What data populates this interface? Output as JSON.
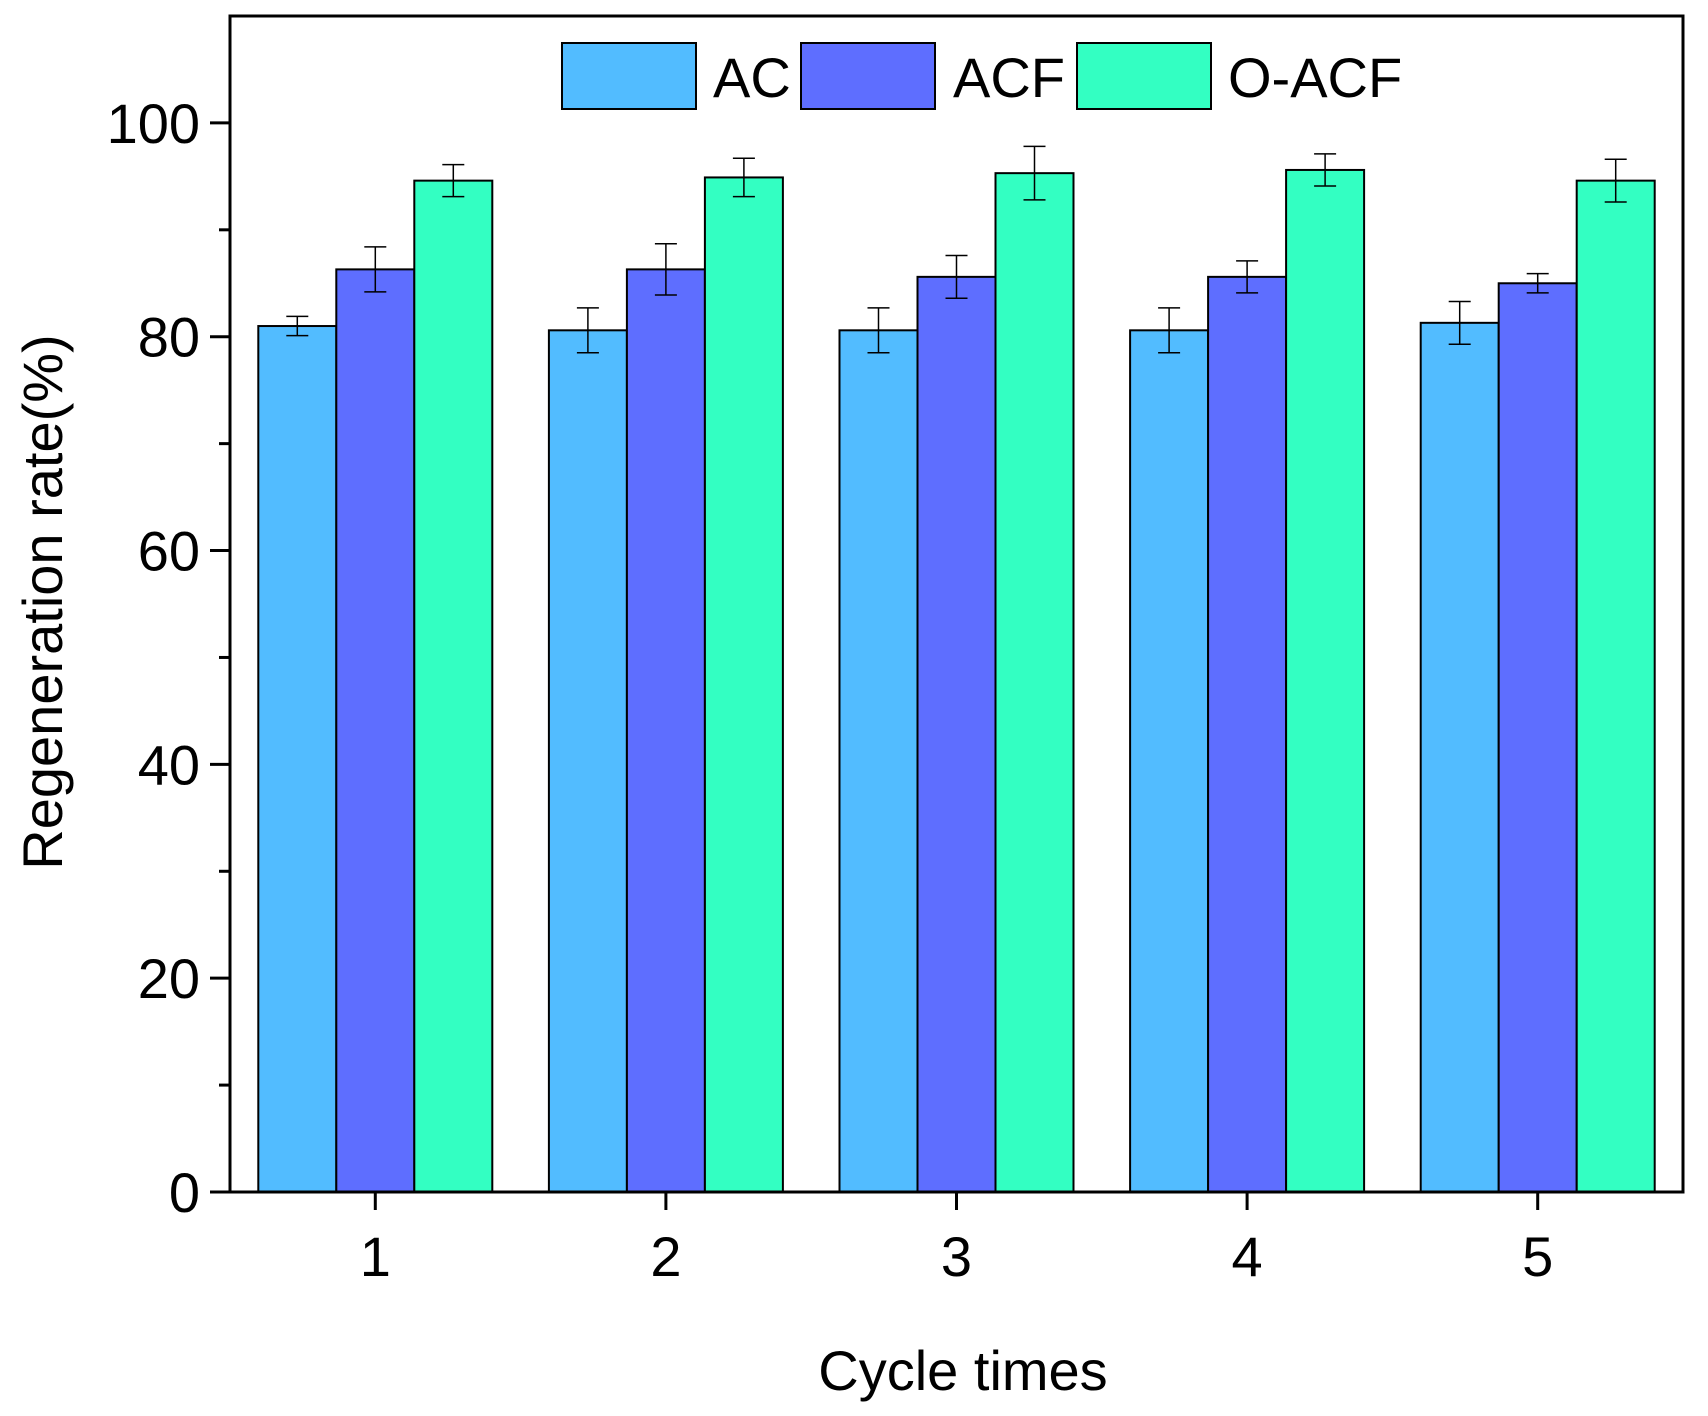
{
  "chart_data": {
    "type": "bar",
    "title": "",
    "xlabel": "Cycle times",
    "ylabel": "Regeneration rate(%)",
    "categories": [
      "1",
      "2",
      "3",
      "4",
      "5"
    ],
    "ylim": [
      0,
      110
    ],
    "yticks": [
      0,
      20,
      40,
      60,
      80,
      100
    ],
    "yticks_minor": [
      10,
      30,
      50,
      70,
      90
    ],
    "ytick_labels": [
      "0",
      "20",
      "40",
      "60",
      "80",
      "100"
    ],
    "legend_position": "top-center",
    "grid": false,
    "series": [
      {
        "name": "AC",
        "color": "#52BCFF",
        "values": [
          81.0,
          80.6,
          80.6,
          80.6,
          81.3
        ],
        "errors": [
          0.9,
          2.1,
          2.1,
          2.1,
          2.0
        ]
      },
      {
        "name": "ACF",
        "color": "#5E6EFF",
        "values": [
          86.3,
          86.3,
          85.6,
          85.6,
          85.0
        ],
        "errors": [
          2.1,
          2.4,
          2.0,
          1.5,
          0.9
        ]
      },
      {
        "name": "O-ACF",
        "color": "#33FFC2",
        "values": [
          94.6,
          94.9,
          95.3,
          95.6,
          94.6
        ],
        "errors": [
          1.5,
          1.8,
          2.5,
          1.5,
          2.0
        ]
      }
    ]
  }
}
